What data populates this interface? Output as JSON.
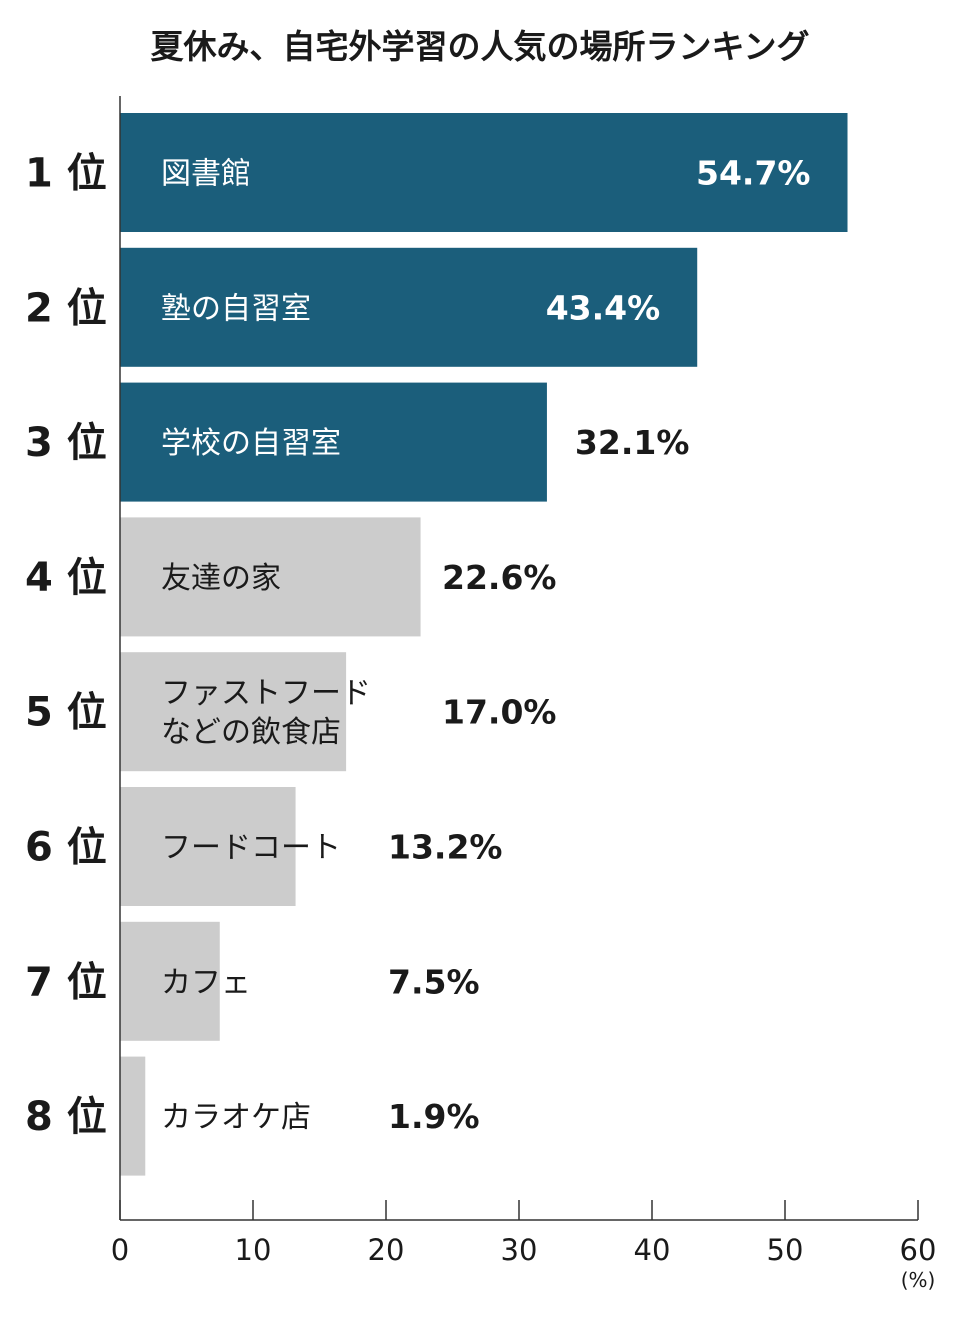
{
  "chart_data": {
    "type": "bar",
    "orientation": "horizontal",
    "title": "夏休み、自宅外学習の人気の場所ランキング",
    "ranks": [
      "1 位",
      "2 位",
      "3 位",
      "4 位",
      "5 位",
      "6 位",
      "7 位",
      "8 位"
    ],
    "categories": [
      [
        "図書館"
      ],
      [
        "塾の自習室"
      ],
      [
        "学校の自習室"
      ],
      [
        "友達の家"
      ],
      [
        "ファストフード",
        "などの飲食店"
      ],
      [
        "フードコート"
      ],
      [
        "カフェ"
      ],
      [
        "カラオケ店"
      ]
    ],
    "values": [
      54.7,
      43.4,
      32.1,
      22.6,
      17.0,
      13.2,
      7.5,
      1.9
    ],
    "value_labels": [
      "54.7%",
      "43.4%",
      "32.1%",
      "22.6%",
      "17.0%",
      "13.2%",
      "7.5%",
      "1.9%"
    ],
    "xlim": [
      0,
      60
    ],
    "xticks": [
      0,
      10,
      20,
      30,
      40,
      50,
      60
    ],
    "x_unit": "(%)",
    "colors": {
      "top3": "#1b5e7b",
      "others": "#cccccc",
      "axis": "#333333"
    },
    "highlight_count": 3,
    "grid": false
  }
}
